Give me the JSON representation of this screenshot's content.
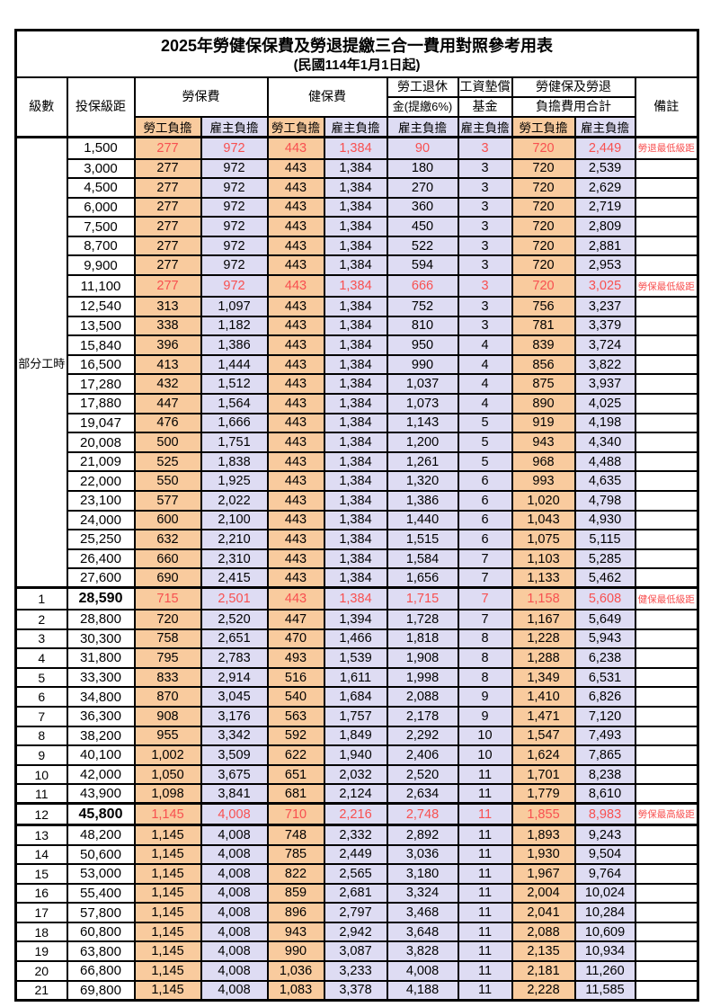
{
  "title": "2025年勞健保保費及勞退提繳三合一費用對照參考用表",
  "subtitle": "(民國114年1月1日起)",
  "colors": {
    "employee_col_bg": "#f9cb9e",
    "employer_col_bg": "#dedcf3",
    "highlight_text": "#f85050",
    "border": "#000000"
  },
  "table": {
    "header": {
      "level": "級數",
      "bracket": "投保級距",
      "labor_fee": "勞保費",
      "health_fee": "健保費",
      "pension_top": "勞工退休",
      "pension_bottom": "金(提繳6%)",
      "fund_top": "工資墊償",
      "fund_bottom": "基金",
      "total_top": "勞健保及勞退",
      "total_bottom": "負擔費用合計",
      "note": "備註",
      "employee_burden": "勞工負擔",
      "employer_burden": "雇主負擔"
    },
    "part_time_label": "部分工時",
    "part_time_rowspan": 23,
    "rows": [
      {
        "level": "",
        "bracket": "1,500",
        "values": [
          "277",
          "972",
          "443",
          "1,384",
          "90",
          "3",
          "720",
          "2,449"
        ],
        "note": "勞退最低級距",
        "red": true,
        "bold": false
      },
      {
        "level": "",
        "bracket": "3,000",
        "values": [
          "277",
          "972",
          "443",
          "1,384",
          "180",
          "3",
          "720",
          "2,539"
        ],
        "note": "",
        "red": false,
        "bold": false
      },
      {
        "level": "",
        "bracket": "4,500",
        "values": [
          "277",
          "972",
          "443",
          "1,384",
          "270",
          "3",
          "720",
          "2,629"
        ],
        "note": "",
        "red": false,
        "bold": false
      },
      {
        "level": "",
        "bracket": "6,000",
        "values": [
          "277",
          "972",
          "443",
          "1,384",
          "360",
          "3",
          "720",
          "2,719"
        ],
        "note": "",
        "red": false,
        "bold": false
      },
      {
        "level": "",
        "bracket": "7,500",
        "values": [
          "277",
          "972",
          "443",
          "1,384",
          "450",
          "3",
          "720",
          "2,809"
        ],
        "note": "",
        "red": false,
        "bold": false
      },
      {
        "level": "",
        "bracket": "8,700",
        "values": [
          "277",
          "972",
          "443",
          "1,384",
          "522",
          "3",
          "720",
          "2,881"
        ],
        "note": "",
        "red": false,
        "bold": false
      },
      {
        "level": "",
        "bracket": "9,900",
        "values": [
          "277",
          "972",
          "443",
          "1,384",
          "594",
          "3",
          "720",
          "2,953"
        ],
        "note": "",
        "red": false,
        "bold": false
      },
      {
        "level": "",
        "bracket": "11,100",
        "values": [
          "277",
          "972",
          "443",
          "1,384",
          "666",
          "3",
          "720",
          "3,025"
        ],
        "note": "勞保最低級距",
        "red": true,
        "bold": false
      },
      {
        "level": "",
        "bracket": "12,540",
        "values": [
          "313",
          "1,097",
          "443",
          "1,384",
          "752",
          "3",
          "756",
          "3,237"
        ],
        "note": "",
        "red": false,
        "bold": false
      },
      {
        "level": "",
        "bracket": "13,500",
        "values": [
          "338",
          "1,182",
          "443",
          "1,384",
          "810",
          "3",
          "781",
          "3,379"
        ],
        "note": "",
        "red": false,
        "bold": false
      },
      {
        "level": "",
        "bracket": "15,840",
        "values": [
          "396",
          "1,386",
          "443",
          "1,384",
          "950",
          "4",
          "839",
          "3,724"
        ],
        "note": "",
        "red": false,
        "bold": false
      },
      {
        "level": "",
        "bracket": "16,500",
        "values": [
          "413",
          "1,444",
          "443",
          "1,384",
          "990",
          "4",
          "856",
          "3,822"
        ],
        "note": "",
        "red": false,
        "bold": false
      },
      {
        "level": "",
        "bracket": "17,280",
        "values": [
          "432",
          "1,512",
          "443",
          "1,384",
          "1,037",
          "4",
          "875",
          "3,937"
        ],
        "note": "",
        "red": false,
        "bold": false
      },
      {
        "level": "",
        "bracket": "17,880",
        "values": [
          "447",
          "1,564",
          "443",
          "1,384",
          "1,073",
          "4",
          "890",
          "4,025"
        ],
        "note": "",
        "red": false,
        "bold": false
      },
      {
        "level": "",
        "bracket": "19,047",
        "values": [
          "476",
          "1,666",
          "443",
          "1,384",
          "1,143",
          "5",
          "919",
          "4,198"
        ],
        "note": "",
        "red": false,
        "bold": false
      },
      {
        "level": "",
        "bracket": "20,008",
        "values": [
          "500",
          "1,751",
          "443",
          "1,384",
          "1,200",
          "5",
          "943",
          "4,340"
        ],
        "note": "",
        "red": false,
        "bold": false
      },
      {
        "level": "",
        "bracket": "21,009",
        "values": [
          "525",
          "1,838",
          "443",
          "1,384",
          "1,261",
          "5",
          "968",
          "4,488"
        ],
        "note": "",
        "red": false,
        "bold": false
      },
      {
        "level": "",
        "bracket": "22,000",
        "values": [
          "550",
          "1,925",
          "443",
          "1,384",
          "1,320",
          "6",
          "993",
          "4,635"
        ],
        "note": "",
        "red": false,
        "bold": false
      },
      {
        "level": "",
        "bracket": "23,100",
        "values": [
          "577",
          "2,022",
          "443",
          "1,384",
          "1,386",
          "6",
          "1,020",
          "4,798"
        ],
        "note": "",
        "red": false,
        "bold": false
      },
      {
        "level": "",
        "bracket": "24,000",
        "values": [
          "600",
          "2,100",
          "443",
          "1,384",
          "1,440",
          "6",
          "1,043",
          "4,930"
        ],
        "note": "",
        "red": false,
        "bold": false
      },
      {
        "level": "",
        "bracket": "25,250",
        "values": [
          "632",
          "2,210",
          "443",
          "1,384",
          "1,515",
          "6",
          "1,075",
          "5,115"
        ],
        "note": "",
        "red": false,
        "bold": false
      },
      {
        "level": "",
        "bracket": "26,400",
        "values": [
          "660",
          "2,310",
          "443",
          "1,384",
          "1,584",
          "7",
          "1,103",
          "5,285"
        ],
        "note": "",
        "red": false,
        "bold": false
      },
      {
        "level": "",
        "bracket": "27,600",
        "values": [
          "690",
          "2,415",
          "443",
          "1,384",
          "1,656",
          "7",
          "1,133",
          "5,462"
        ],
        "note": "",
        "red": false,
        "bold": false
      },
      {
        "level": "1",
        "bracket": "28,590",
        "values": [
          "715",
          "2,501",
          "443",
          "1,384",
          "1,715",
          "7",
          "1,158",
          "5,608"
        ],
        "note": "健保最低級距",
        "red": true,
        "bold": true
      },
      {
        "level": "2",
        "bracket": "28,800",
        "values": [
          "720",
          "2,520",
          "447",
          "1,394",
          "1,728",
          "7",
          "1,167",
          "5,649"
        ],
        "note": "",
        "red": false,
        "bold": false
      },
      {
        "level": "3",
        "bracket": "30,300",
        "values": [
          "758",
          "2,651",
          "470",
          "1,466",
          "1,818",
          "8",
          "1,228",
          "5,943"
        ],
        "note": "",
        "red": false,
        "bold": false
      },
      {
        "level": "4",
        "bracket": "31,800",
        "values": [
          "795",
          "2,783",
          "493",
          "1,539",
          "1,908",
          "8",
          "1,288",
          "6,238"
        ],
        "note": "",
        "red": false,
        "bold": false
      },
      {
        "level": "5",
        "bracket": "33,300",
        "values": [
          "833",
          "2,914",
          "516",
          "1,611",
          "1,998",
          "8",
          "1,349",
          "6,531"
        ],
        "note": "",
        "red": false,
        "bold": false
      },
      {
        "level": "6",
        "bracket": "34,800",
        "values": [
          "870",
          "3,045",
          "540",
          "1,684",
          "2,088",
          "9",
          "1,410",
          "6,826"
        ],
        "note": "",
        "red": false,
        "bold": false
      },
      {
        "level": "7",
        "bracket": "36,300",
        "values": [
          "908",
          "3,176",
          "563",
          "1,757",
          "2,178",
          "9",
          "1,471",
          "7,120"
        ],
        "note": "",
        "red": false,
        "bold": false
      },
      {
        "level": "8",
        "bracket": "38,200",
        "values": [
          "955",
          "3,342",
          "592",
          "1,849",
          "2,292",
          "10",
          "1,547",
          "7,493"
        ],
        "note": "",
        "red": false,
        "bold": false
      },
      {
        "level": "9",
        "bracket": "40,100",
        "values": [
          "1,002",
          "3,509",
          "622",
          "1,940",
          "2,406",
          "10",
          "1,624",
          "7,865"
        ],
        "note": "",
        "red": false,
        "bold": false
      },
      {
        "level": "10",
        "bracket": "42,000",
        "values": [
          "1,050",
          "3,675",
          "651",
          "2,032",
          "2,520",
          "11",
          "1,701",
          "8,238"
        ],
        "note": "",
        "red": false,
        "bold": false
      },
      {
        "level": "11",
        "bracket": "43,900",
        "values": [
          "1,098",
          "3,841",
          "681",
          "2,124",
          "2,634",
          "11",
          "1,779",
          "8,610"
        ],
        "note": "",
        "red": false,
        "bold": false
      },
      {
        "level": "12",
        "bracket": "45,800",
        "values": [
          "1,145",
          "4,008",
          "710",
          "2,216",
          "2,748",
          "11",
          "1,855",
          "8,983"
        ],
        "note": "勞保最高級距",
        "red": true,
        "bold": true
      },
      {
        "level": "13",
        "bracket": "48,200",
        "values": [
          "1,145",
          "4,008",
          "748",
          "2,332",
          "2,892",
          "11",
          "1,893",
          "9,243"
        ],
        "note": "",
        "red": false,
        "bold": false
      },
      {
        "level": "14",
        "bracket": "50,600",
        "values": [
          "1,145",
          "4,008",
          "785",
          "2,449",
          "3,036",
          "11",
          "1,930",
          "9,504"
        ],
        "note": "",
        "red": false,
        "bold": false
      },
      {
        "level": "15",
        "bracket": "53,000",
        "values": [
          "1,145",
          "4,008",
          "822",
          "2,565",
          "3,180",
          "11",
          "1,967",
          "9,764"
        ],
        "note": "",
        "red": false,
        "bold": false
      },
      {
        "level": "16",
        "bracket": "55,400",
        "values": [
          "1,145",
          "4,008",
          "859",
          "2,681",
          "3,324",
          "11",
          "2,004",
          "10,024"
        ],
        "note": "",
        "red": false,
        "bold": false
      },
      {
        "level": "17",
        "bracket": "57,800",
        "values": [
          "1,145",
          "4,008",
          "896",
          "2,797",
          "3,468",
          "11",
          "2,041",
          "10,284"
        ],
        "note": "",
        "red": false,
        "bold": false
      },
      {
        "level": "18",
        "bracket": "60,800",
        "values": [
          "1,145",
          "4,008",
          "943",
          "2,942",
          "3,648",
          "11",
          "2,088",
          "10,609"
        ],
        "note": "",
        "red": false,
        "bold": false
      },
      {
        "level": "19",
        "bracket": "63,800",
        "values": [
          "1,145",
          "4,008",
          "990",
          "3,087",
          "3,828",
          "11",
          "2,135",
          "10,934"
        ],
        "note": "",
        "red": false,
        "bold": false
      },
      {
        "level": "20",
        "bracket": "66,800",
        "values": [
          "1,145",
          "4,008",
          "1,036",
          "3,233",
          "4,008",
          "11",
          "2,181",
          "11,260"
        ],
        "note": "",
        "red": false,
        "bold": false
      },
      {
        "level": "21",
        "bracket": "69,800",
        "values": [
          "1,145",
          "4,008",
          "1,083",
          "3,378",
          "4,188",
          "11",
          "2,228",
          "11,585"
        ],
        "note": "",
        "red": false,
        "bold": false
      }
    ]
  }
}
